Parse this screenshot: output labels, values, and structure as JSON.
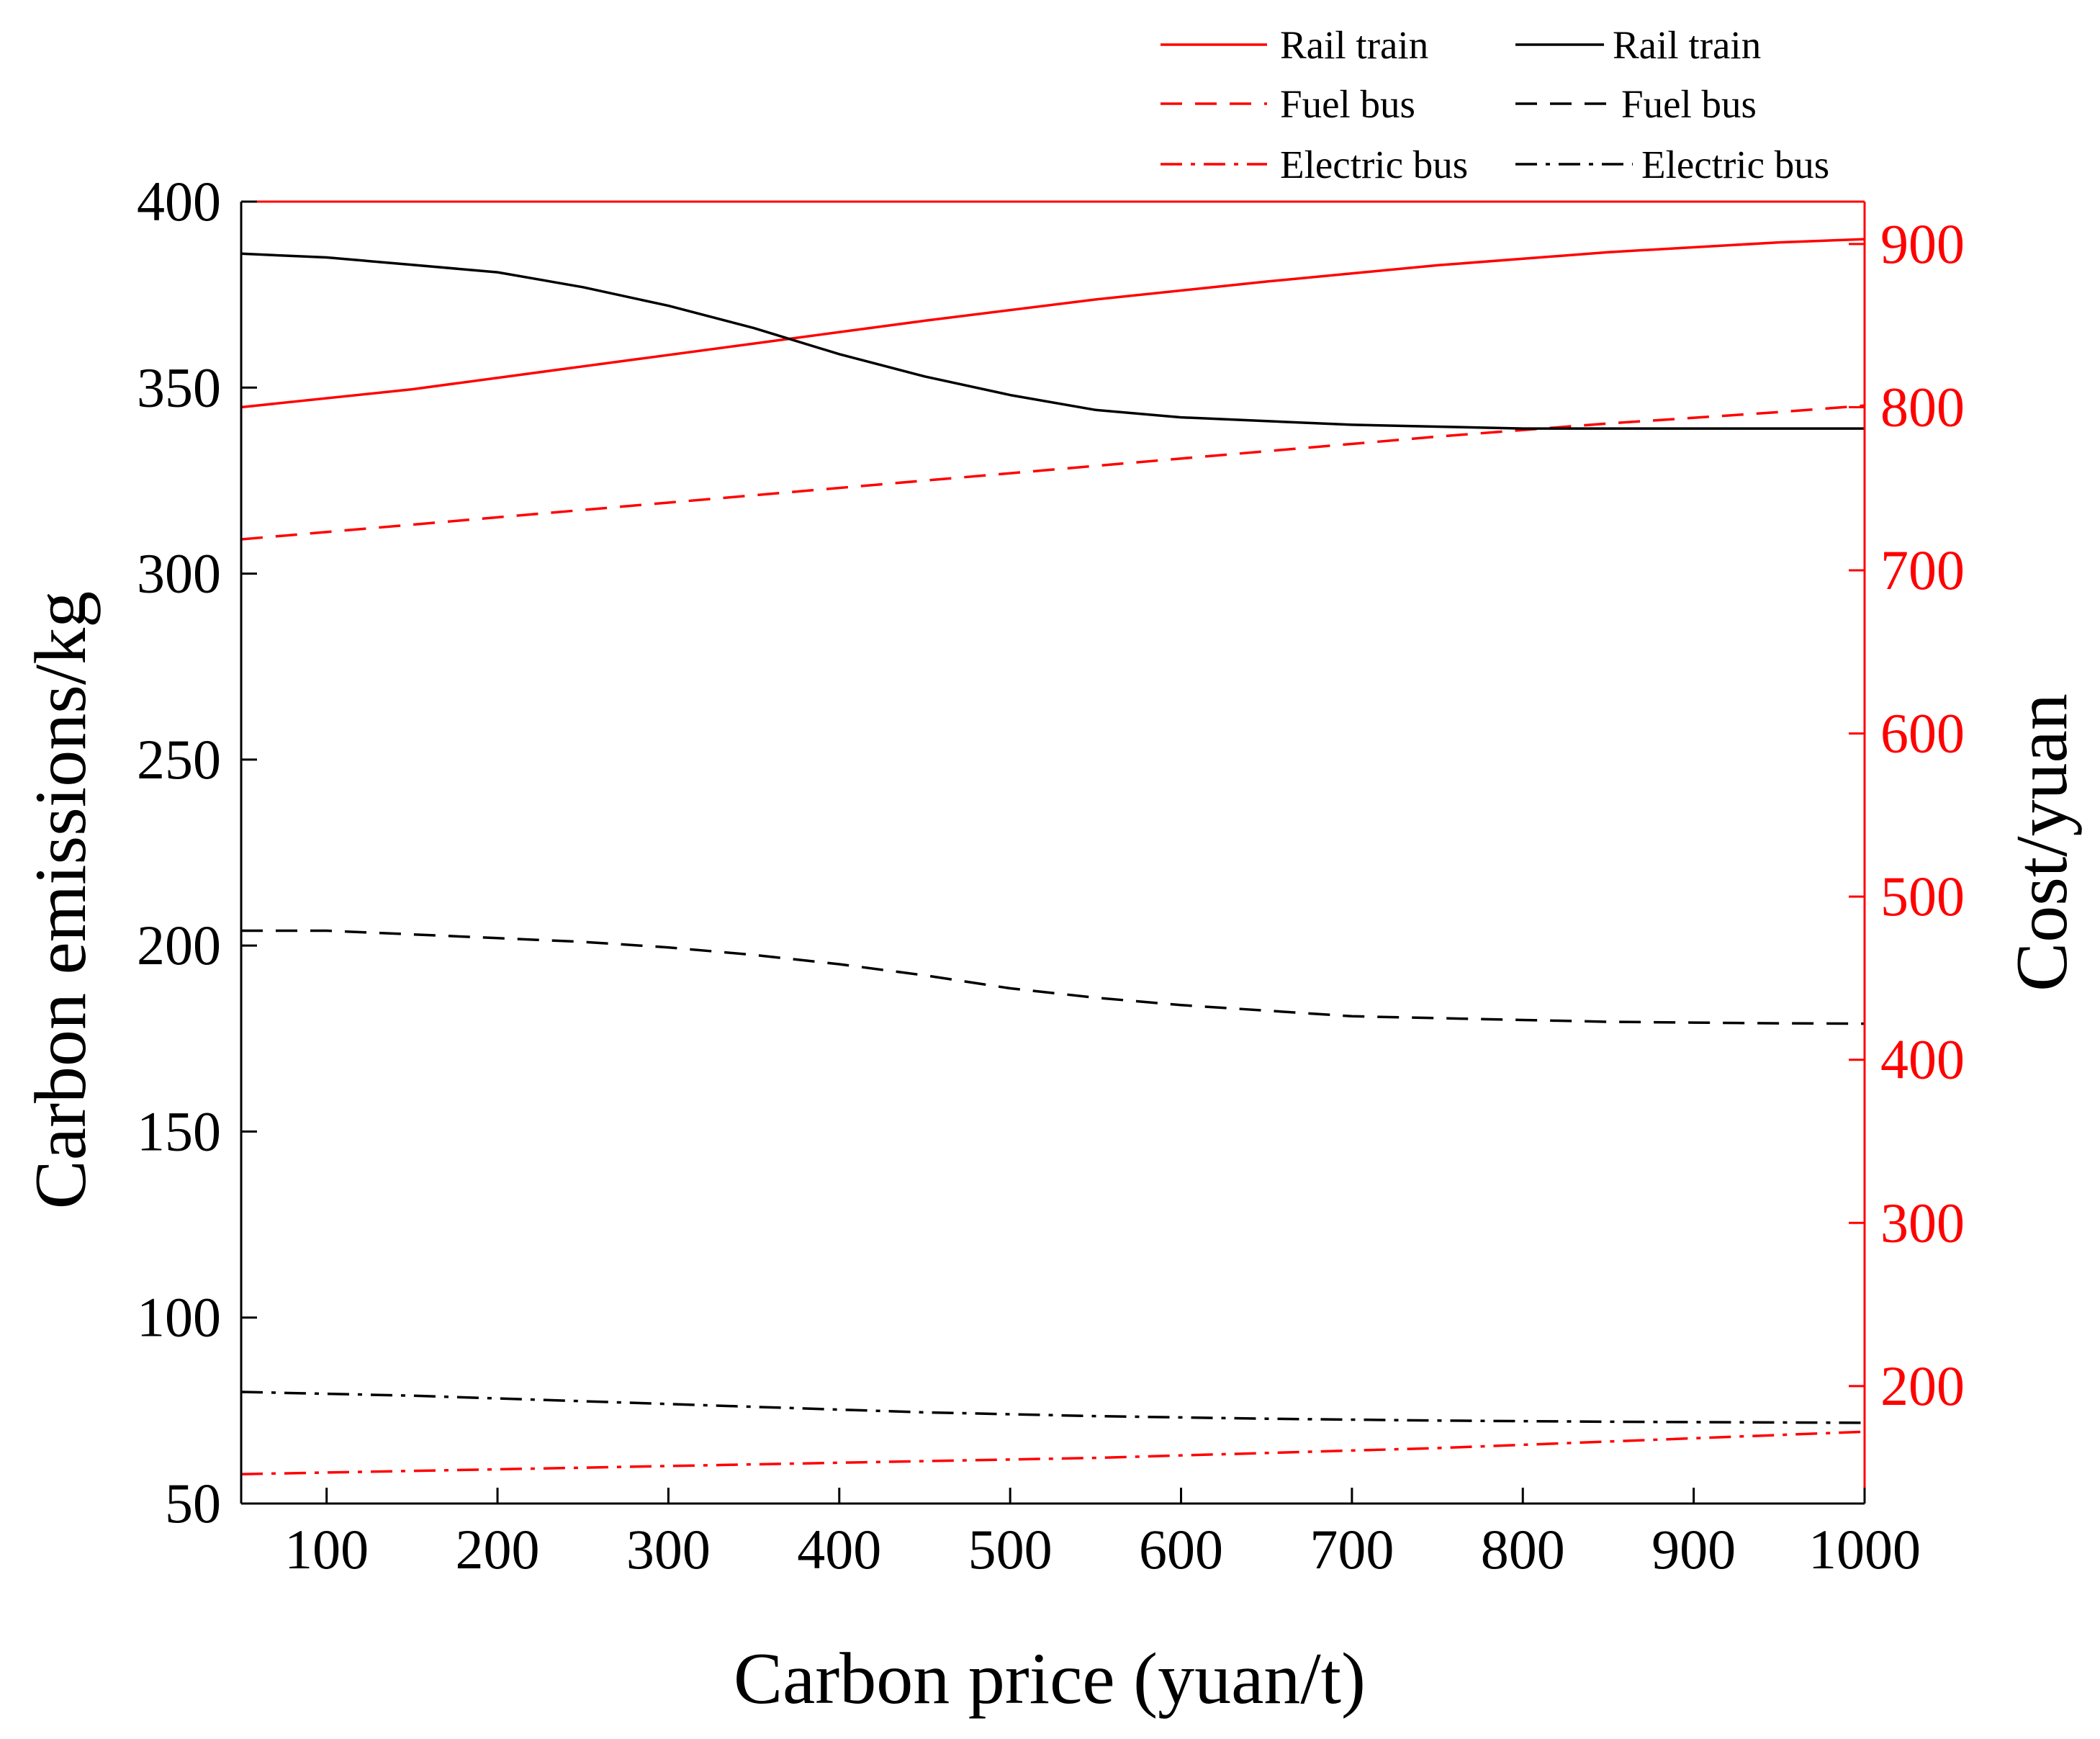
{
  "chart_data": {
    "type": "line",
    "title": "",
    "xlabel": "Carbon price (yuan/t)",
    "ylabel_left": "Carbon emissions/kg",
    "ylabel_right": "Cost/yuan",
    "xlim": [
      50,
      1000
    ],
    "ylim_left": [
      50,
      400
    ],
    "ylim_right": [
      128,
      926
    ],
    "xticks": [
      100,
      200,
      300,
      400,
      500,
      600,
      700,
      800,
      900,
      1000
    ],
    "yticks_left": [
      50,
      100,
      150,
      200,
      250,
      300,
      350,
      400
    ],
    "yticks_right": [
      200,
      300,
      400,
      500,
      600,
      700,
      800,
      900
    ],
    "grid": false,
    "legend_position": "top-right",
    "colors": {
      "cost": "#ff0000",
      "emissions": "#000000"
    },
    "series": [
      {
        "name": "Rail train",
        "axis": "right",
        "style": "solid",
        "color": "#ff0000",
        "x": [
          50,
          150,
          250,
          350,
          450,
          550,
          650,
          750,
          850,
          950,
          1000
        ],
        "y": [
          800,
          811,
          825,
          839,
          853,
          866,
          877,
          887,
          895,
          901,
          903
        ]
      },
      {
        "name": "Fuel bus",
        "axis": "right",
        "style": "dashed",
        "color": "#ff0000",
        "x": [
          50,
          150,
          250,
          350,
          450,
          550,
          650,
          750,
          850,
          950,
          1000
        ],
        "y": [
          719,
          728,
          737,
          746,
          755,
          764,
          773,
          782,
          790,
          797,
          801
        ]
      },
      {
        "name": "Electric bus",
        "axis": "right",
        "style": "dashdot",
        "color": "#ff0000",
        "x": [
          50,
          150,
          250,
          350,
          450,
          550,
          650,
          750,
          850,
          950,
          1000
        ],
        "y": [
          146,
          148,
          150,
          152,
          154,
          156,
          159,
          162,
          166,
          170,
          172
        ]
      },
      {
        "name": "Rail train",
        "axis": "left",
        "style": "solid",
        "color": "#000000",
        "x": [
          50,
          100,
          150,
          200,
          250,
          300,
          350,
          400,
          450,
          500,
          550,
          600,
          650,
          700,
          750,
          800,
          850,
          900,
          950,
          1000
        ],
        "y": [
          386,
          385,
          383,
          381,
          377,
          372,
          366,
          359,
          353,
          348,
          344,
          342,
          341,
          340,
          339.5,
          339,
          339,
          339,
          339,
          339
        ]
      },
      {
        "name": "Fuel bus",
        "axis": "left",
        "style": "dashed",
        "color": "#000000",
        "x": [
          50,
          100,
          150,
          200,
          250,
          300,
          350,
          400,
          450,
          500,
          550,
          600,
          650,
          700,
          750,
          800,
          850,
          900,
          950,
          1000
        ],
        "y": [
          204,
          204,
          203,
          202,
          201,
          199.5,
          197.5,
          195,
          192,
          188.5,
          186,
          184,
          182.5,
          181,
          180.5,
          180,
          179.5,
          179.3,
          179.1,
          179
        ]
      },
      {
        "name": "Electric bus",
        "axis": "left",
        "style": "dashdot",
        "color": "#000000",
        "x": [
          50,
          150,
          250,
          350,
          450,
          550,
          650,
          750,
          850,
          950,
          1000
        ],
        "y": [
          80,
          79,
          77.5,
          76,
          74.5,
          73.5,
          72.8,
          72.3,
          72,
          71.8,
          71.7
        ]
      }
    ],
    "legend": {
      "left_column": [
        "Rail train",
        "Fuel bus",
        "Electric bus"
      ],
      "right_column": [
        "Rail train",
        "Fuel bus",
        "Electric bus"
      ]
    }
  }
}
